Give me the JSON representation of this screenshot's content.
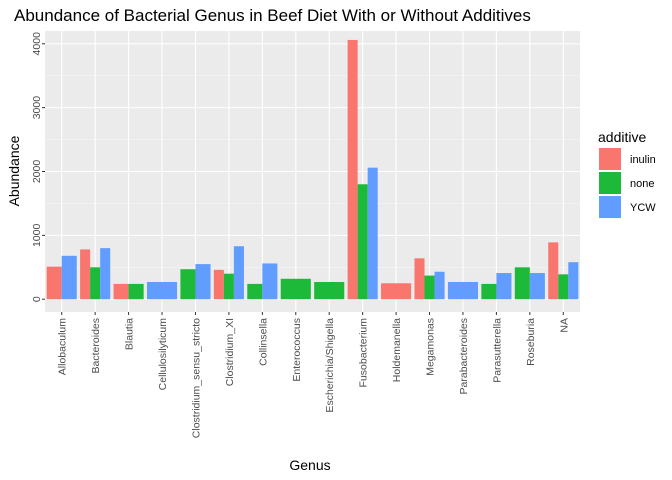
{
  "chart_data": {
    "type": "bar",
    "title": "Abundance of Bacterial Genus in Beef Diet With or Without Additives",
    "xlabel": "Genus",
    "ylabel": "Abundance",
    "ylim": [
      -200,
      4200
    ],
    "yticks": [
      0,
      1000,
      2000,
      3000,
      4000
    ],
    "grid": true,
    "legend_position": "right",
    "legend_title": "additive",
    "colors": {
      "inulin": "#F8766D",
      "none": "#1CBA38",
      "YCW": "#619CFF"
    },
    "series_order": [
      "inulin",
      "none",
      "YCW"
    ],
    "categories": [
      {
        "name": "Allobaculum",
        "bars": [
          {
            "series": "inulin",
            "value": 510
          },
          {
            "series": "YCW",
            "value": 680
          }
        ]
      },
      {
        "name": "Bacteroides",
        "bars": [
          {
            "series": "inulin",
            "value": 780
          },
          {
            "series": "none",
            "value": 500
          },
          {
            "series": "YCW",
            "value": 800
          }
        ]
      },
      {
        "name": "Blautia",
        "bars": [
          {
            "series": "inulin",
            "value": 240
          },
          {
            "series": "none",
            "value": 240
          }
        ]
      },
      {
        "name": "Cellulosilyticum",
        "bars": [
          {
            "series": "YCW",
            "value": 270
          }
        ]
      },
      {
        "name": "Clostridium_sensu_stricto",
        "bars": [
          {
            "series": "none",
            "value": 470
          },
          {
            "series": "YCW",
            "value": 550
          }
        ]
      },
      {
        "name": "Clostridium_XI",
        "bars": [
          {
            "series": "inulin",
            "value": 460
          },
          {
            "series": "none",
            "value": 400
          },
          {
            "series": "YCW",
            "value": 830
          }
        ]
      },
      {
        "name": "Collinsella",
        "bars": [
          {
            "series": "none",
            "value": 240
          },
          {
            "series": "YCW",
            "value": 560
          }
        ]
      },
      {
        "name": "Enterococcus",
        "bars": [
          {
            "series": "none",
            "value": 320
          }
        ]
      },
      {
        "name": "Escherichia/Shigella",
        "bars": [
          {
            "series": "none",
            "value": 270
          }
        ]
      },
      {
        "name": "Fusobacterium",
        "bars": [
          {
            "series": "inulin",
            "value": 4060
          },
          {
            "series": "none",
            "value": 1800
          },
          {
            "series": "YCW",
            "value": 2060
          }
        ]
      },
      {
        "name": "Holdemanella",
        "bars": [
          {
            "series": "inulin",
            "value": 250
          }
        ]
      },
      {
        "name": "Megamonas",
        "bars": [
          {
            "series": "inulin",
            "value": 640
          },
          {
            "series": "none",
            "value": 370
          },
          {
            "series": "YCW",
            "value": 430
          }
        ]
      },
      {
        "name": "Parabacteroides",
        "bars": [
          {
            "series": "YCW",
            "value": 270
          }
        ]
      },
      {
        "name": "Parasutterella",
        "bars": [
          {
            "series": "none",
            "value": 240
          },
          {
            "series": "YCW",
            "value": 410
          }
        ]
      },
      {
        "name": "Roseburia",
        "bars": [
          {
            "series": "none",
            "value": 500
          },
          {
            "series": "YCW",
            "value": 410
          }
        ]
      },
      {
        "name": "NA",
        "bars": [
          {
            "series": "inulin",
            "value": 890
          },
          {
            "series": "none",
            "value": 390
          },
          {
            "series": "YCW",
            "value": 580
          }
        ]
      }
    ]
  }
}
